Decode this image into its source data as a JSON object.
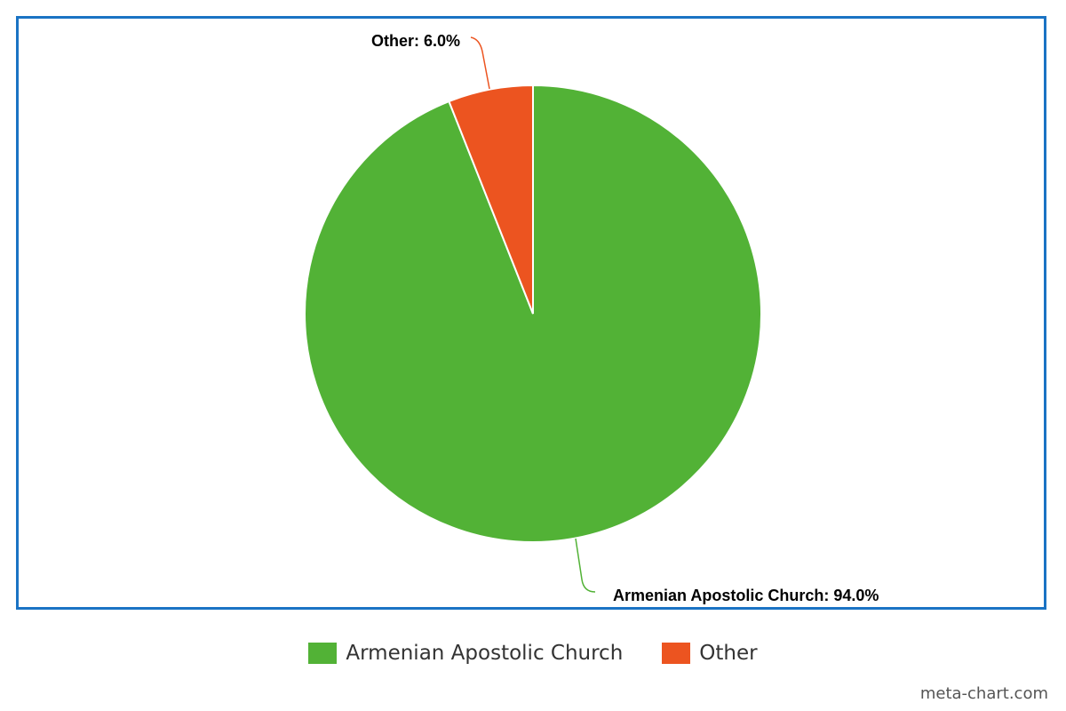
{
  "chart_data": {
    "type": "pie",
    "title": "",
    "slices": [
      {
        "label": "Armenian Apostolic Church",
        "value": 94.0,
        "display": "Armenian Apostolic Church: 94.0%",
        "color": "#52b236"
      },
      {
        "label": "Other",
        "value": 6.0,
        "display": "Other: 6.0%",
        "color": "#ec5420"
      }
    ],
    "start_angle_deg": 0,
    "direction": "clockwise",
    "legend_position": "bottom-center"
  },
  "frame_color": "#1a73c4",
  "watermark": "meta-chart.com"
}
